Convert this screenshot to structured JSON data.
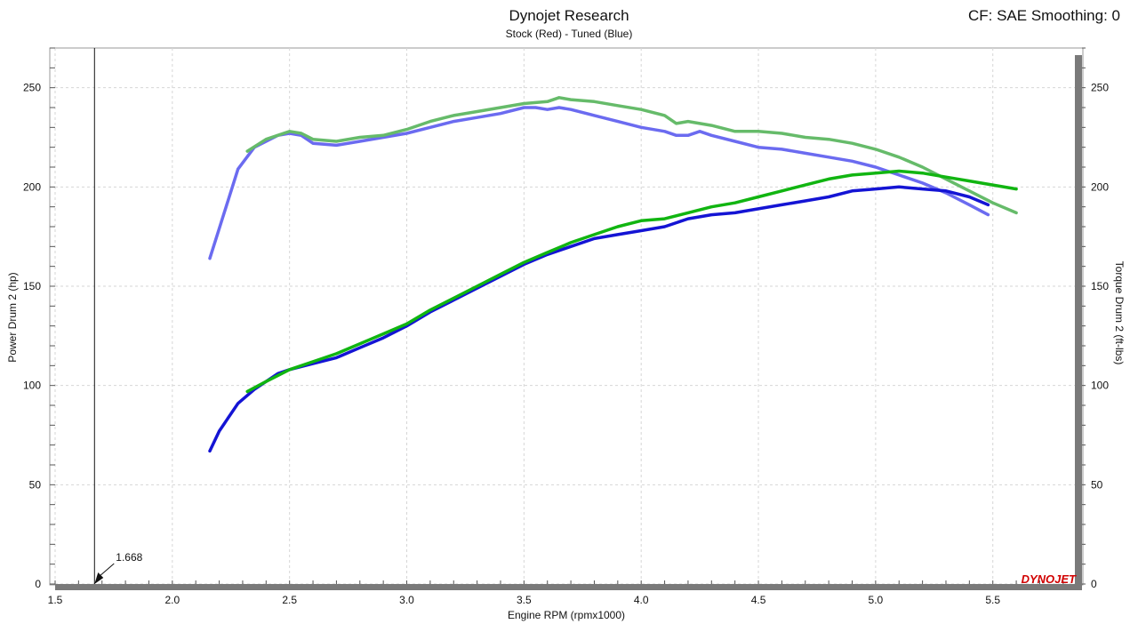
{
  "header": {
    "title": "Dynojet Research",
    "subtitle": "Stock (Red) - Tuned (Blue)",
    "cf": "CF: SAE Smoothing: 0"
  },
  "logo": {
    "text": "DYNOJET",
    "color": "#d10000"
  },
  "chart_data": {
    "type": "line",
    "xlabel": "Engine RPM (rpmx1000)",
    "ylabel": "Power Drum 2 (hp)",
    "y2label": "Torque Drum 2 (ft-lbs)",
    "xlim": [
      1.5,
      5.85
    ],
    "ylim": [
      0,
      270
    ],
    "y2lim": [
      0,
      270
    ],
    "grid": true,
    "xticks": [
      "1.5",
      "2.0",
      "2.5",
      "3.0",
      "3.5",
      "4.0",
      "4.5",
      "5.0",
      "5.5"
    ],
    "yticks": [
      "0",
      "50",
      "100",
      "150",
      "200",
      "250"
    ],
    "y2ticks": [
      "0",
      "50",
      "100",
      "150",
      "200",
      "250"
    ],
    "cursor": {
      "x": 1.668,
      "label": "1.668"
    },
    "series": [
      {
        "name": "Torque - Stock",
        "axis": "right",
        "color": "#6b6bf0",
        "x": [
          2.16,
          2.28,
          2.35,
          2.45,
          2.5,
          2.55,
          2.6,
          2.7,
          2.8,
          2.9,
          3.0,
          3.1,
          3.2,
          3.3,
          3.4,
          3.5,
          3.55,
          3.6,
          3.65,
          3.7,
          3.8,
          3.9,
          4.0,
          4.1,
          4.15,
          4.2,
          4.25,
          4.3,
          4.4,
          4.5,
          4.6,
          4.7,
          4.8,
          4.9,
          5.0,
          5.1,
          5.2,
          5.3,
          5.4,
          5.48
        ],
        "y": [
          164,
          209,
          220,
          226,
          227,
          226,
          222,
          221,
          223,
          225,
          227,
          230,
          233,
          235,
          237,
          240,
          240,
          239,
          240,
          239,
          236,
          233,
          230,
          228,
          226,
          226,
          228,
          226,
          223,
          220,
          219,
          217,
          215,
          213,
          210,
          206,
          202,
          197,
          191,
          186
        ]
      },
      {
        "name": "Torque - Tuned",
        "axis": "right",
        "color": "#66bb6a",
        "x": [
          2.32,
          2.4,
          2.5,
          2.55,
          2.6,
          2.7,
          2.8,
          2.9,
          3.0,
          3.1,
          3.2,
          3.3,
          3.4,
          3.5,
          3.6,
          3.65,
          3.7,
          3.8,
          3.9,
          4.0,
          4.1,
          4.15,
          4.2,
          4.3,
          4.4,
          4.5,
          4.6,
          4.7,
          4.8,
          4.9,
          5.0,
          5.1,
          5.2,
          5.3,
          5.4,
          5.5,
          5.6
        ],
        "y": [
          218,
          224,
          228,
          227,
          224,
          223,
          225,
          226,
          229,
          233,
          236,
          238,
          240,
          242,
          243,
          245,
          244,
          243,
          241,
          239,
          236,
          232,
          233,
          231,
          228,
          228,
          227,
          225,
          224,
          222,
          219,
          215,
          210,
          204,
          198,
          192,
          187
        ]
      },
      {
        "name": "Power - Stock",
        "axis": "left",
        "color": "#1414d4",
        "x": [
          2.16,
          2.2,
          2.28,
          2.35,
          2.45,
          2.5,
          2.6,
          2.7,
          2.8,
          2.9,
          3.0,
          3.1,
          3.2,
          3.3,
          3.4,
          3.5,
          3.6,
          3.7,
          3.8,
          3.9,
          4.0,
          4.1,
          4.2,
          4.3,
          4.4,
          4.5,
          4.6,
          4.7,
          4.8,
          4.9,
          5.0,
          5.1,
          5.2,
          5.3,
          5.4,
          5.48
        ],
        "y": [
          67,
          77,
          91,
          98,
          106,
          108,
          111,
          114,
          119,
          124,
          130,
          137,
          143,
          149,
          155,
          161,
          166,
          170,
          174,
          176,
          178,
          180,
          184,
          186,
          187,
          189,
          191,
          193,
          195,
          198,
          199,
          200,
          199,
          198,
          195,
          191
        ]
      },
      {
        "name": "Power - Tuned",
        "axis": "left",
        "color": "#11b511",
        "x": [
          2.32,
          2.4,
          2.5,
          2.6,
          2.7,
          2.8,
          2.9,
          3.0,
          3.1,
          3.2,
          3.3,
          3.4,
          3.5,
          3.6,
          3.7,
          3.8,
          3.9,
          4.0,
          4.1,
          4.2,
          4.3,
          4.4,
          4.5,
          4.6,
          4.7,
          4.8,
          4.9,
          5.0,
          5.1,
          5.2,
          5.3,
          5.4,
          5.5,
          5.6
        ],
        "y": [
          97,
          102,
          108,
          112,
          116,
          121,
          126,
          131,
          138,
          144,
          150,
          156,
          162,
          167,
          172,
          176,
          180,
          183,
          184,
          187,
          190,
          192,
          195,
          198,
          201,
          204,
          206,
          207,
          208,
          207,
          205,
          203,
          201,
          199
        ]
      }
    ]
  }
}
